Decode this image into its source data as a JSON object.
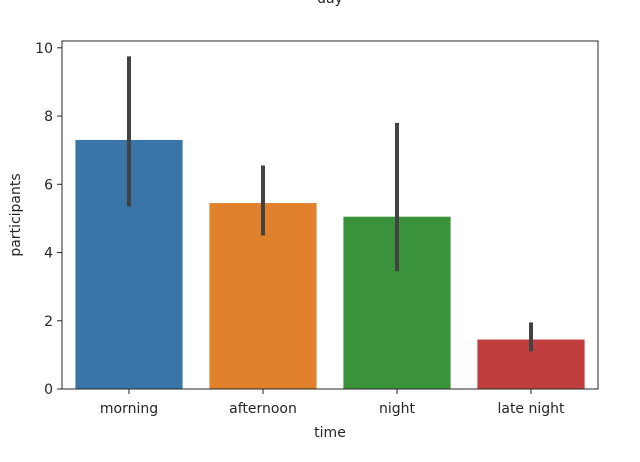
{
  "chart_data": {
    "type": "bar",
    "title": "day",
    "xlabel": "time",
    "ylabel": "participants",
    "categories": [
      "morning",
      "afternoon",
      "night",
      "late night"
    ],
    "values": [
      7.3,
      5.45,
      5.05,
      1.45
    ],
    "error_low": [
      5.35,
      4.5,
      3.45,
      1.1
    ],
    "error_high": [
      9.75,
      6.55,
      7.8,
      1.95
    ],
    "colors": [
      "#3a75a8",
      "#e1812c",
      "#3a923a",
      "#c03d3e"
    ],
    "ylim": [
      0,
      10.2
    ],
    "yticks": [
      0,
      2,
      4,
      6,
      8,
      10
    ],
    "grid": false
  }
}
